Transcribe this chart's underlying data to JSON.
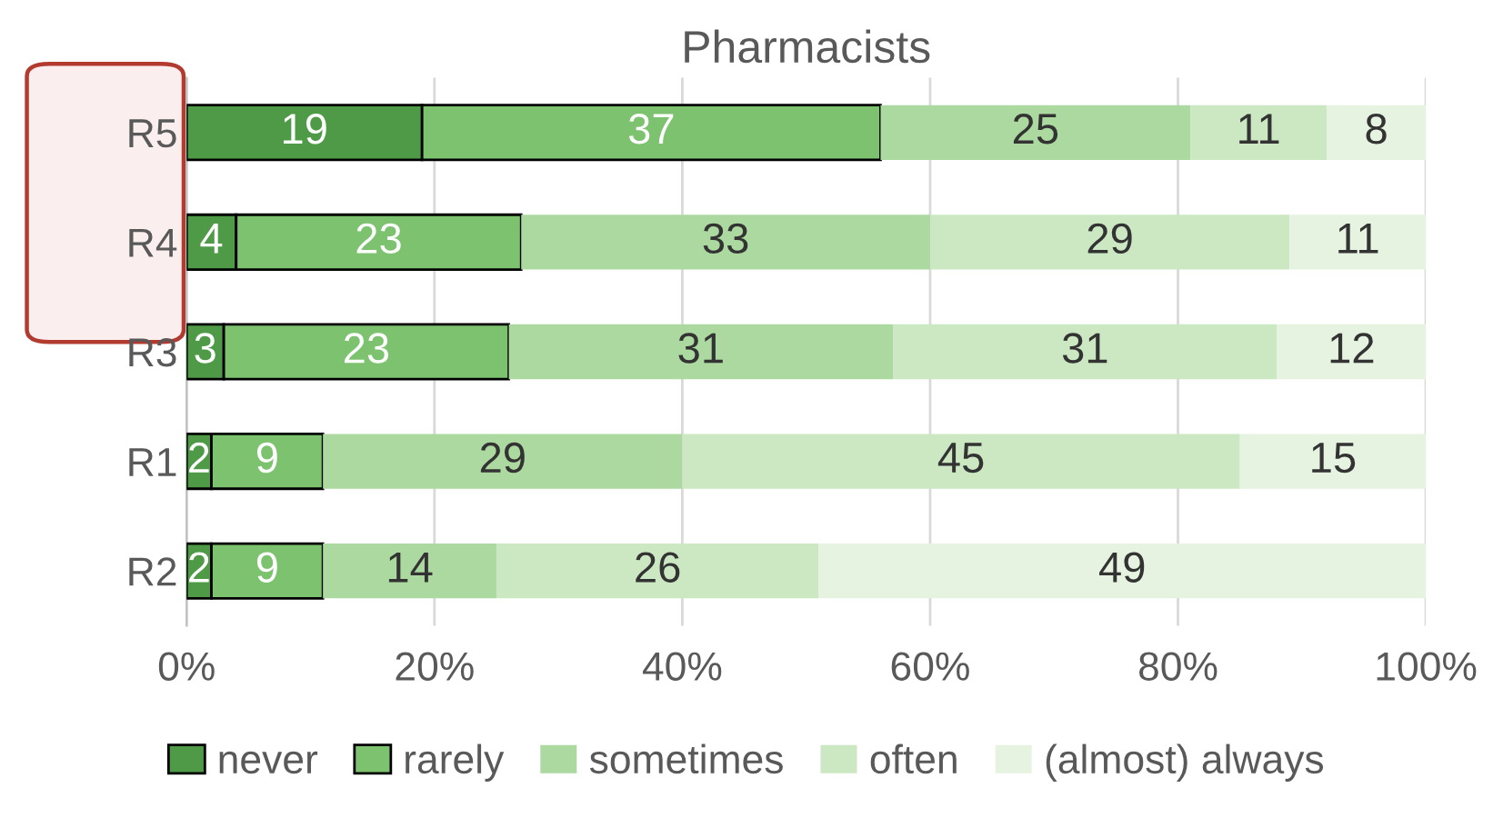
{
  "chart_data": {
    "type": "bar",
    "title": "Pharmacists",
    "orientation": "horizontal",
    "stacked": true,
    "categories": [
      "R5",
      "R4",
      "R3",
      "R1",
      "R2"
    ],
    "series": [
      {
        "name": "never",
        "color": "#4e9a47",
        "values": [
          19,
          4,
          3,
          2,
          2
        ]
      },
      {
        "name": "rarely",
        "color": "#7cc26f",
        "values": [
          37,
          23,
          23,
          9,
          9
        ]
      },
      {
        "name": "sometimes",
        "color": "#acd9a0",
        "values": [
          25,
          33,
          31,
          29,
          14
        ]
      },
      {
        "name": "often",
        "color": "#cbe8c2",
        "values": [
          11,
          29,
          31,
          45,
          26
        ]
      },
      {
        "name": "(almost) always",
        "color": "#e5f3e0",
        "values": [
          8,
          11,
          12,
          15,
          49
        ]
      }
    ],
    "xlim": [
      0,
      100
    ],
    "xticks": [
      {
        "value": 0,
        "label": "0%"
      },
      {
        "value": 20,
        "label": "20%"
      },
      {
        "value": 40,
        "label": "40%"
      },
      {
        "value": 60,
        "label": "60%"
      },
      {
        "value": 80,
        "label": "80%"
      },
      {
        "value": 100,
        "label": "100%"
      }
    ],
    "grid": "x",
    "legend": "bottom",
    "data_labels": true
  }
}
